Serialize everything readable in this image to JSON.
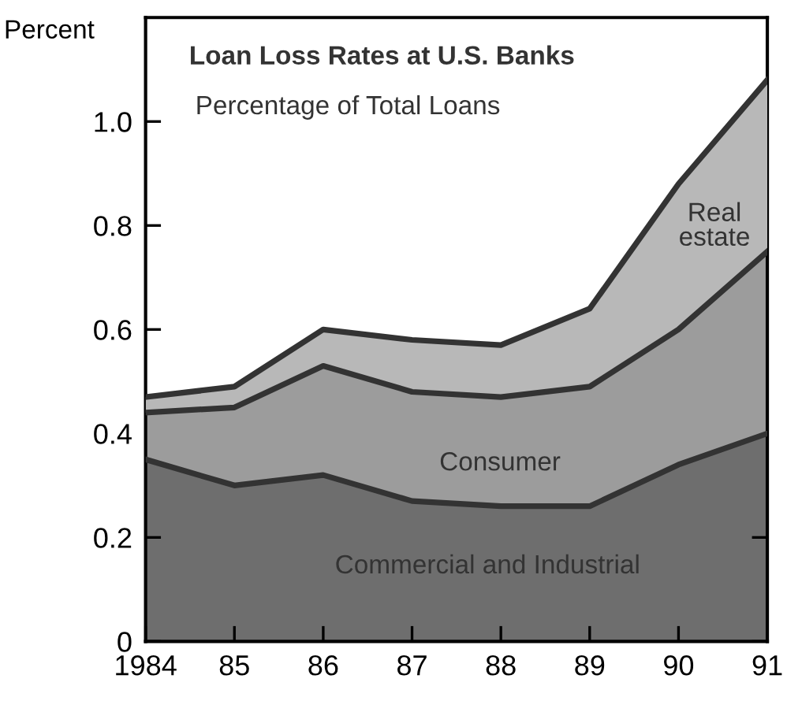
{
  "chart_data": {
    "type": "area",
    "stacked": true,
    "title": "Loan Loss Rates at U.S. Banks",
    "subtitle": "Percentage of Total Loans",
    "ylabel": "Percent",
    "x": [
      1984,
      1985,
      1986,
      1987,
      1988,
      1989,
      1990,
      1991
    ],
    "series": [
      {
        "name": "Commercial and Industrial",
        "color": "#6e6e6e",
        "values": [
          0.35,
          0.3,
          0.32,
          0.27,
          0.26,
          0.26,
          0.34,
          0.4
        ]
      },
      {
        "name": "Consumer",
        "color": "#9c9c9c",
        "values": [
          0.09,
          0.15,
          0.21,
          0.21,
          0.21,
          0.23,
          0.26,
          0.35
        ]
      },
      {
        "name": "Real\nestate",
        "color": "#b8b8b8",
        "values": [
          0.03,
          0.04,
          0.07,
          0.1,
          0.1,
          0.15,
          0.28,
          0.33
        ]
      }
    ],
    "xlim": [
      1984,
      1991
    ],
    "ylim": [
      0,
      1.2
    ],
    "xticks": [
      {
        "value": 1984,
        "label": "1984"
      },
      {
        "value": 1985,
        "label": "85"
      },
      {
        "value": 1986,
        "label": "86"
      },
      {
        "value": 1987,
        "label": "87"
      },
      {
        "value": 1988,
        "label": "88"
      },
      {
        "value": 1989,
        "label": "89"
      },
      {
        "value": 1990,
        "label": "90"
      },
      {
        "value": 1991,
        "label": "91"
      }
    ],
    "yticks": [
      0,
      0.2,
      0.4,
      0.6,
      0.8,
      {
        "value": 1.0,
        "label": "1.0"
      }
    ],
    "grid": false,
    "legend": false
  }
}
